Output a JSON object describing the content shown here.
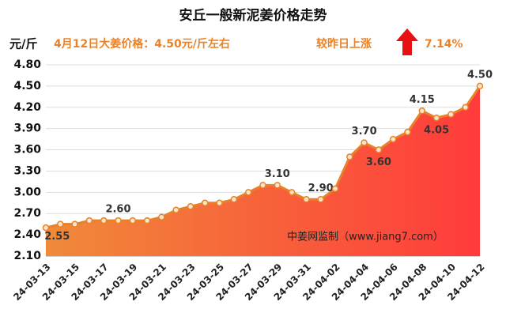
{
  "chart_data": {
    "type": "area",
    "title": "安丘一般新泥姜价格走势",
    "y_unit": "元/斤",
    "headline": "4月12日大姜价格：4.50元/斤左右",
    "change_label": "较昨日上涨",
    "change_value": "7.14%",
    "watermark": "中姜网监制（www.jiang7.com）",
    "categories": [
      "24-03-13",
      null,
      "24-03-15",
      null,
      "24-03-17",
      null,
      "24-03-19",
      null,
      "24-03-21",
      null,
      "24-03-23",
      null,
      "24-03-25",
      null,
      "24-03-27",
      null,
      "24-03-29",
      null,
      "24-03-31",
      null,
      "24-04-02",
      null,
      "24-04-04",
      null,
      "24-04-06",
      null,
      "24-04-08",
      null,
      "24-04-10",
      null,
      "24-04-12"
    ],
    "values": [
      2.5,
      2.55,
      2.55,
      2.6,
      2.6,
      2.6,
      2.6,
      2.6,
      2.65,
      2.75,
      2.8,
      2.85,
      2.85,
      2.9,
      3.0,
      3.1,
      3.1,
      3.0,
      2.9,
      2.9,
      3.05,
      3.5,
      3.7,
      3.6,
      3.75,
      3.85,
      4.15,
      4.05,
      4.1,
      4.2,
      4.5
    ],
    "value_labels": [
      null,
      "2.55",
      null,
      null,
      null,
      "2.60",
      null,
      null,
      null,
      null,
      null,
      null,
      null,
      null,
      null,
      null,
      "3.10",
      null,
      null,
      "2.90",
      null,
      null,
      "3.70",
      "3.60",
      null,
      null,
      "4.15",
      "4.05",
      null,
      null,
      "4.50"
    ],
    "color": "#e8822a",
    "ylim": [
      2.1,
      4.8
    ],
    "yticks": [
      {
        "value": 2.1,
        "label": "2.10"
      },
      {
        "value": 2.4,
        "label": "2.40"
      },
      {
        "value": 2.7,
        "label": "2.70"
      },
      {
        "value": 3,
        "label": "3.00"
      },
      {
        "value": 3.3,
        "label": "3.30"
      },
      {
        "value": 3.6,
        "label": "3.60"
      },
      {
        "value": 3.9,
        "label": "3.90"
      },
      {
        "value": 4.2,
        "label": "4.20"
      },
      {
        "value": 4.5,
        "label": "4.50"
      },
      {
        "value": 4.8,
        "label": "4.80"
      }
    ],
    "grid": true
  }
}
